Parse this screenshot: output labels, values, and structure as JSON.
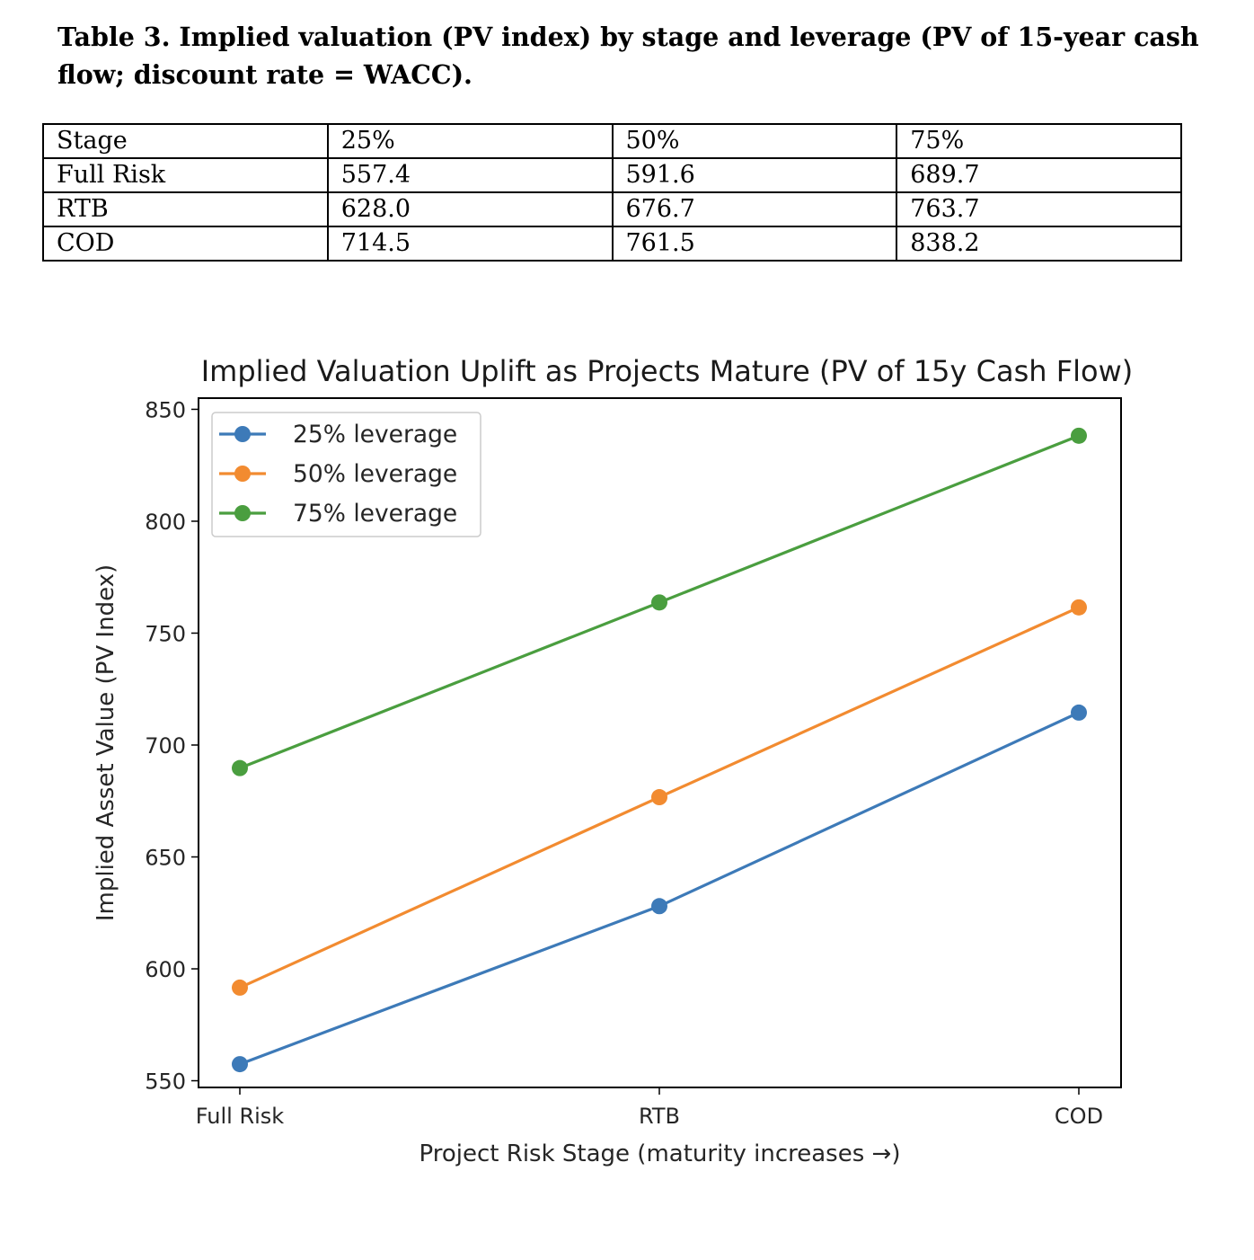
{
  "caption": "Table 3. Implied valuation (PV index) by stage and leverage (PV of 15-year cash flow; discount rate = WACC).",
  "table": {
    "header": [
      "Stage",
      "25%",
      "50%",
      "75%"
    ],
    "rows": [
      [
        "Full Risk",
        "557.4",
        "591.6",
        "689.7"
      ],
      [
        "RTB",
        "628.0",
        "676.7",
        "763.7"
      ],
      [
        "COD",
        "714.5",
        "761.5",
        "838.2"
      ]
    ]
  },
  "chart_data": {
    "type": "line",
    "title": "Implied Valuation Uplift as Projects Mature (PV of 15y Cash Flow)",
    "xlabel": "Project Risk Stage (maturity increases →)",
    "ylabel": "Implied Asset Value (PV Index)",
    "categories": [
      "Full Risk",
      "RTB",
      "COD"
    ],
    "ylim": [
      547,
      855
    ],
    "yticks": [
      550,
      600,
      650,
      700,
      750,
      800,
      850
    ],
    "grid": false,
    "legend_position": "upper-left",
    "series": [
      {
        "name": "25% leverage",
        "color": "#3d7ab8",
        "values": [
          557.4,
          628.0,
          714.5
        ]
      },
      {
        "name": "50% leverage",
        "color": "#f28b30",
        "values": [
          591.6,
          676.7,
          761.5
        ]
      },
      {
        "name": "75% leverage",
        "color": "#4a9e3f",
        "values": [
          689.7,
          763.7,
          838.2
        ]
      }
    ]
  }
}
